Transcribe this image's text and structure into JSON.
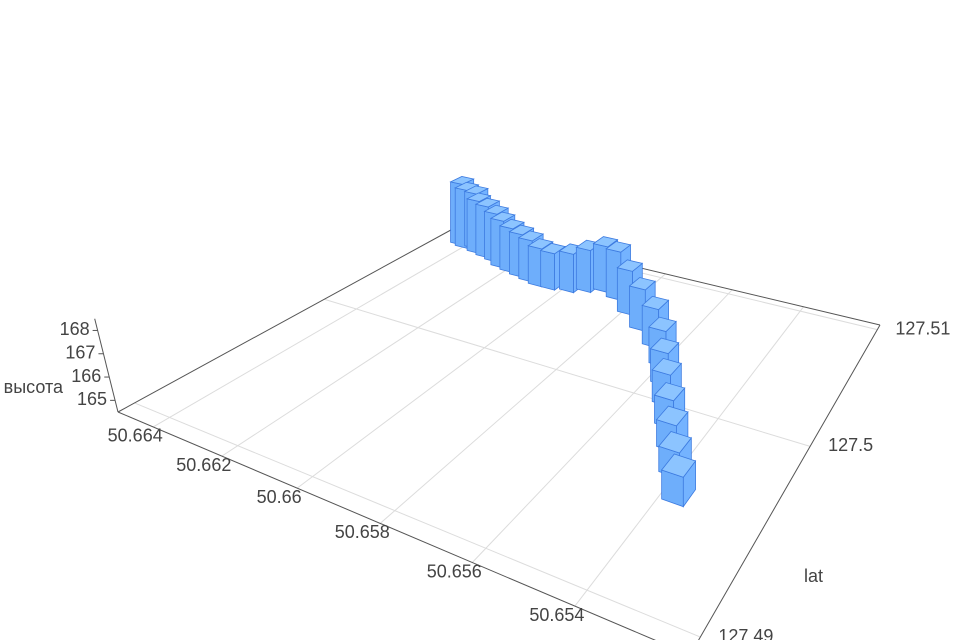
{
  "chart_data": {
    "type": "bar3d",
    "x": [
      50.66431,
      50.66405,
      50.66379,
      50.66353,
      50.66313,
      50.66274,
      50.66235,
      50.66196,
      50.66156,
      50.66117,
      50.66078,
      50.66038,
      50.65986,
      50.65947,
      50.65907,
      50.65855,
      50.6579,
      50.65724,
      50.65659,
      50.65606,
      50.65567,
      50.65528,
      50.65488,
      50.65449,
      50.6541,
      50.6537
    ],
    "y": [
      127.5088,
      127.50859,
      127.5088,
      127.50838,
      127.50817,
      127.50796,
      127.50753,
      127.50732,
      127.50711,
      127.5069,
      127.50668,
      127.50668,
      127.5069,
      127.50732,
      127.50774,
      127.50732,
      127.50626,
      127.5052,
      127.50414,
      127.50287,
      127.5016,
      127.50032,
      127.49905,
      127.49778,
      127.49651,
      127.49524
    ],
    "z": [
      168.2,
      168.0,
      167.8,
      167.6,
      167.5,
      167.3,
      167.2,
      167.0,
      166.9,
      166.8,
      166.6,
      166.5,
      166.6,
      166.8,
      167.0,
      167.1,
      166.8,
      166.6,
      166.4,
      166.2,
      166.0,
      165.9,
      165.7,
      165.6,
      165.5,
      165.6
    ],
    "xlim": [
      50.6651,
      50.652
    ],
    "xticks": [
      50.664,
      50.662,
      50.66,
      50.658,
      50.656,
      50.654
    ],
    "ylabel": "lat",
    "ylim": [
      127.4893,
      127.5105
    ],
    "yticks": [
      127.49,
      127.5,
      127.51
    ],
    "zlabel": "высота",
    "zlim": [
      164.5,
      168.5
    ],
    "zticks": [
      165,
      166,
      167,
      168
    ],
    "color": "#74b3ff",
    "grid": true
  }
}
